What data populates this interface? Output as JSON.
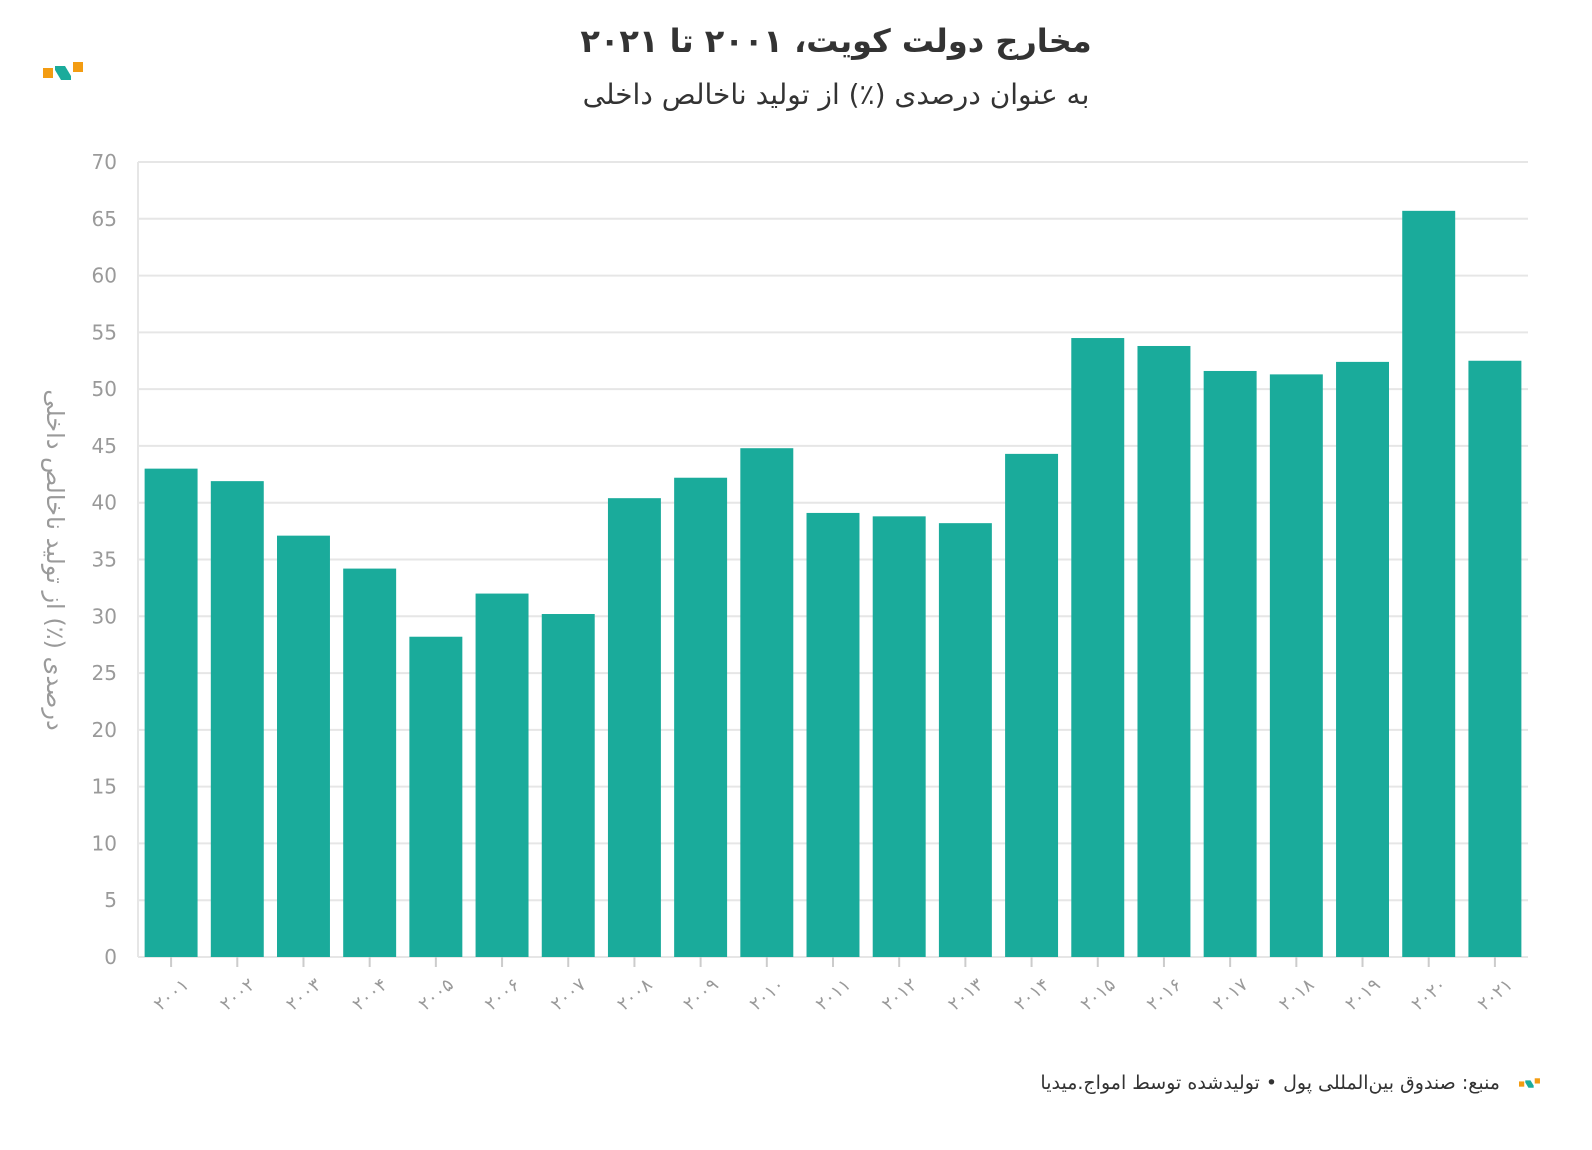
{
  "chart_data": {
    "type": "bar",
    "title": "مخارج دولت کویت، ۲۰۰۱ تا ۲۰۲۱",
    "subtitle": "به عنوان درصدی (٪) از تولید ناخالص داخلی",
    "ylabel": "درصدی (٪) از تولید ناخالص داخلی",
    "xlabel": "",
    "ylim": [
      0,
      70
    ],
    "yticks": [
      0,
      5,
      10,
      15,
      20,
      25,
      30,
      35,
      40,
      45,
      50,
      55,
      60,
      65,
      70
    ],
    "grid": true,
    "categories": [
      "۲۰۰۱",
      "۲۰۰۲",
      "۲۰۰۳",
      "۲۰۰۴",
      "۲۰۰۵",
      "۲۰۰۶",
      "۲۰۰۷",
      "۲۰۰۸",
      "۲۰۰۹",
      "۲۰۱۰",
      "۲۰۱۱",
      "۲۰۱۲",
      "۲۰۱۳",
      "۲۰۱۴",
      "۲۰۱۵",
      "۲۰۱۶",
      "۲۰۱۷",
      "۲۰۱۸",
      "۲۰۱۹",
      "۲۰۲۰",
      "۲۰۲۱"
    ],
    "values": [
      43.0,
      41.9,
      37.1,
      34.2,
      28.2,
      32.0,
      30.2,
      40.4,
      42.2,
      44.8,
      39.1,
      38.8,
      38.2,
      44.3,
      54.5,
      53.8,
      51.6,
      51.3,
      52.4,
      65.7,
      52.5
    ],
    "bar_color": "#1aab9b"
  },
  "footer": {
    "text": "منبع: صندوق بین‌المللی پول • تولیدشده توسط امواج.میدیا"
  },
  "colors": {
    "brand_orange": "#f39c12",
    "brand_teal": "#1aab9b"
  }
}
